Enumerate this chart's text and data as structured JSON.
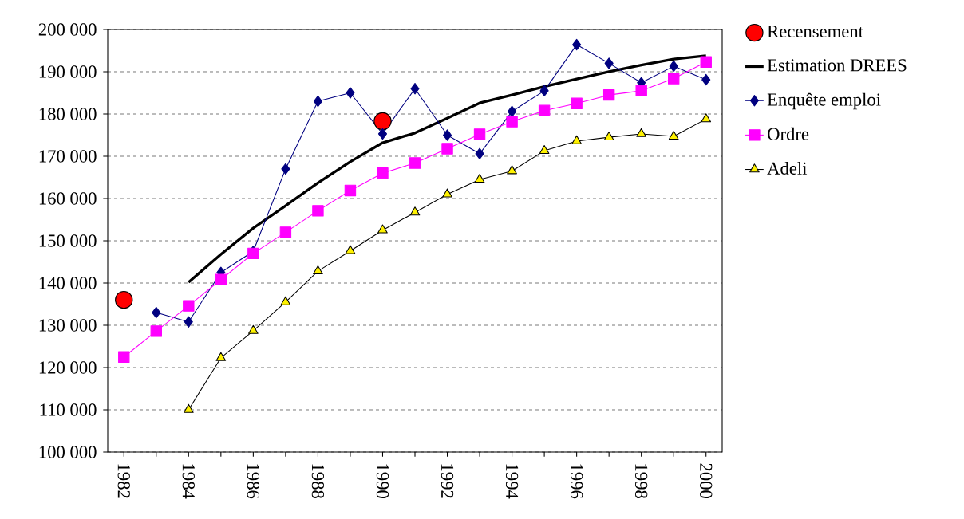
{
  "chart_data": {
    "type": "line",
    "categories": [
      "1982",
      null,
      "1984",
      null,
      "1986",
      null,
      "1988",
      null,
      "1990",
      null,
      "1992",
      null,
      "1994",
      null,
      "1996",
      null,
      "1998",
      null,
      "2000"
    ],
    "ylim": [
      100000,
      200000
    ],
    "yticks": [
      {
        "value": 100000,
        "label": "100 000"
      },
      {
        "value": 110000,
        "label": "110 000"
      },
      {
        "value": 120000,
        "label": "120 000"
      },
      {
        "value": 130000,
        "label": "130 000"
      },
      {
        "value": 140000,
        "label": "140 000"
      },
      {
        "value": 150000,
        "label": "150 000"
      },
      {
        "value": 160000,
        "label": "160 000"
      },
      {
        "value": 170000,
        "label": "170 000"
      },
      {
        "value": 180000,
        "label": "180 000"
      },
      {
        "value": 190000,
        "label": "190 000"
      },
      {
        "value": 200000,
        "label": "200 000"
      }
    ],
    "grid": "y",
    "legend": "right",
    "series": [
      {
        "name": "Recensement",
        "type": "scatter",
        "marker": "circle",
        "color": "#ff0000",
        "values": [
          136000,
          null,
          null,
          null,
          null,
          null,
          null,
          null,
          178300,
          null,
          null,
          null,
          null,
          null,
          null,
          null,
          null,
          null,
          null
        ]
      },
      {
        "name": "Estimation DREES",
        "marker": "none",
        "color": "#000000",
        "values": [
          null,
          null,
          140200,
          146800,
          153000,
          158300,
          163700,
          168700,
          173200,
          175500,
          179000,
          182600,
          184500,
          186500,
          188300,
          190000,
          191600,
          193000,
          193800
        ]
      },
      {
        "name": "Enquête emploi",
        "marker": "diamond",
        "color": "#000080",
        "values": [
          null,
          133000,
          130800,
          142500,
          147500,
          167000,
          183000,
          185000,
          175300,
          186000,
          175000,
          170600,
          180600,
          185500,
          196400,
          192000,
          187400,
          191300,
          188100
        ]
      },
      {
        "name": "Ordre",
        "marker": "square",
        "color": "#ff00ff",
        "values": [
          122500,
          128600,
          134600,
          140800,
          147000,
          152000,
          157100,
          161900,
          166000,
          168400,
          171800,
          175200,
          178200,
          180800,
          182500,
          184500,
          185500,
          188400,
          192300
        ]
      },
      {
        "name": "Adeli",
        "marker": "triangle",
        "color": "#000000",
        "values": [
          null,
          null,
          110000,
          122300,
          128700,
          135500,
          142800,
          147600,
          152500,
          156700,
          161000,
          164500,
          166500,
          171300,
          173600,
          174500,
          175300,
          174700,
          178800
        ]
      }
    ]
  }
}
